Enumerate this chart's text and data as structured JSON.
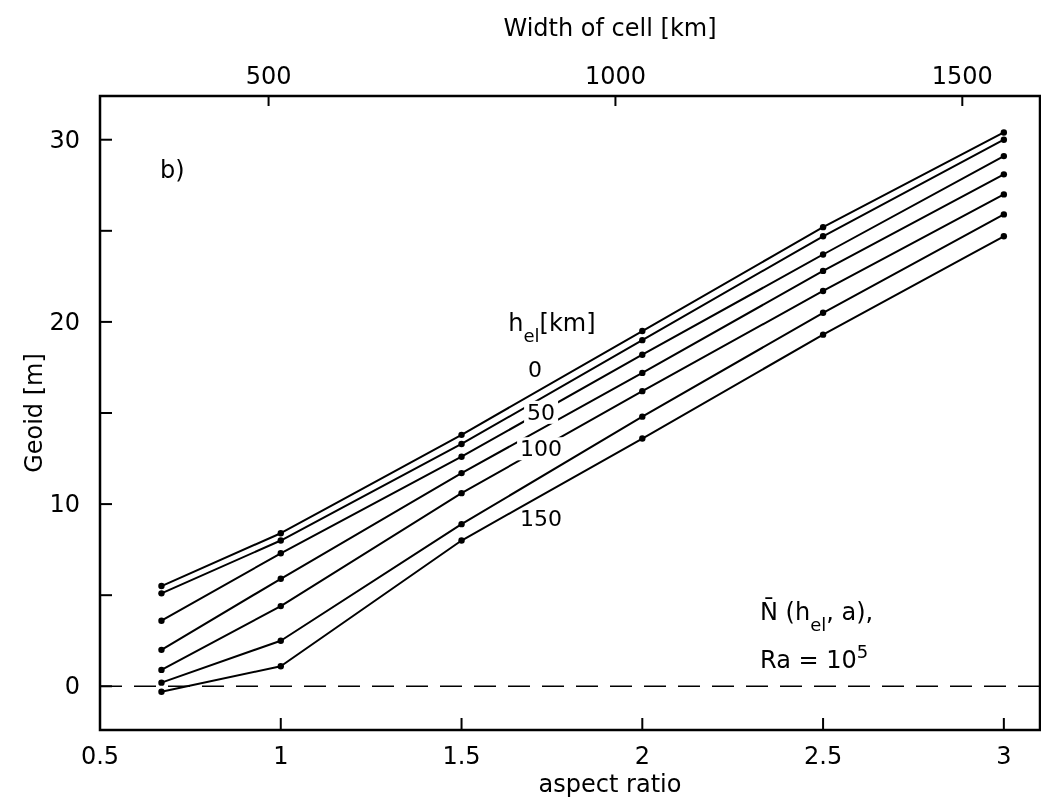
{
  "chart_data": {
    "type": "line",
    "x": [
      0.67,
      1,
      1.5,
      2,
      2.5,
      3
    ],
    "series": [
      {
        "name": "0",
        "color": "#000000",
        "values": [
          5.5,
          8.4,
          13.8,
          19.5,
          25.2,
          30.4
        ]
      },
      {
        "color": "#000000",
        "values": [
          5.1,
          8.0,
          13.3,
          19.0,
          24.7,
          30.0
        ]
      },
      {
        "name": "50",
        "color": "#000000",
        "values": [
          3.6,
          7.3,
          12.6,
          18.2,
          23.7,
          29.1
        ]
      },
      {
        "color": "#000000",
        "values": [
          2.0,
          5.9,
          11.7,
          17.2,
          22.8,
          28.1
        ]
      },
      {
        "name": "100",
        "color": "#000000",
        "values": [
          0.9,
          4.4,
          10.6,
          16.2,
          21.7,
          27.0
        ]
      },
      {
        "color": "#000000",
        "values": [
          0.2,
          2.5,
          8.9,
          14.8,
          20.5,
          25.9
        ]
      },
      {
        "name": "150",
        "color": "#000000",
        "values": [
          -0.3,
          1.1,
          8.0,
          13.6,
          19.3,
          24.7
        ]
      }
    ],
    "xlabel": "aspect ratio",
    "ylabel": "Geoid  [m]",
    "x2label": "Width of  cell [km]",
    "legend_title": "h$_{el}$[km]",
    "xlim": [
      0.5,
      3.1
    ],
    "xticks": [
      0.5,
      1,
      1.5,
      2,
      2.5,
      3
    ],
    "x2lim": [
      257,
      1612
    ],
    "x2ticks": [
      500,
      1000,
      1500
    ],
    "ylim": [
      -2.4,
      32.4
    ],
    "yticks": [
      0,
      {
        "value": 5,
        "label": null
      },
      10,
      {
        "value": 15,
        "label": null
      },
      20,
      {
        "value": 25,
        "label": null
      },
      30
    ],
    "ref_lines": [
      {
        "axis": "y",
        "value": 0,
        "line_style": "dashed",
        "color": "#000000"
      }
    ],
    "annotations": [
      "b)",
      "N̄ (h$_{el}$, a),",
      "Ra = 10$^{5}$"
    ],
    "marker": "circle",
    "line_style": "solid",
    "grid": false
  }
}
